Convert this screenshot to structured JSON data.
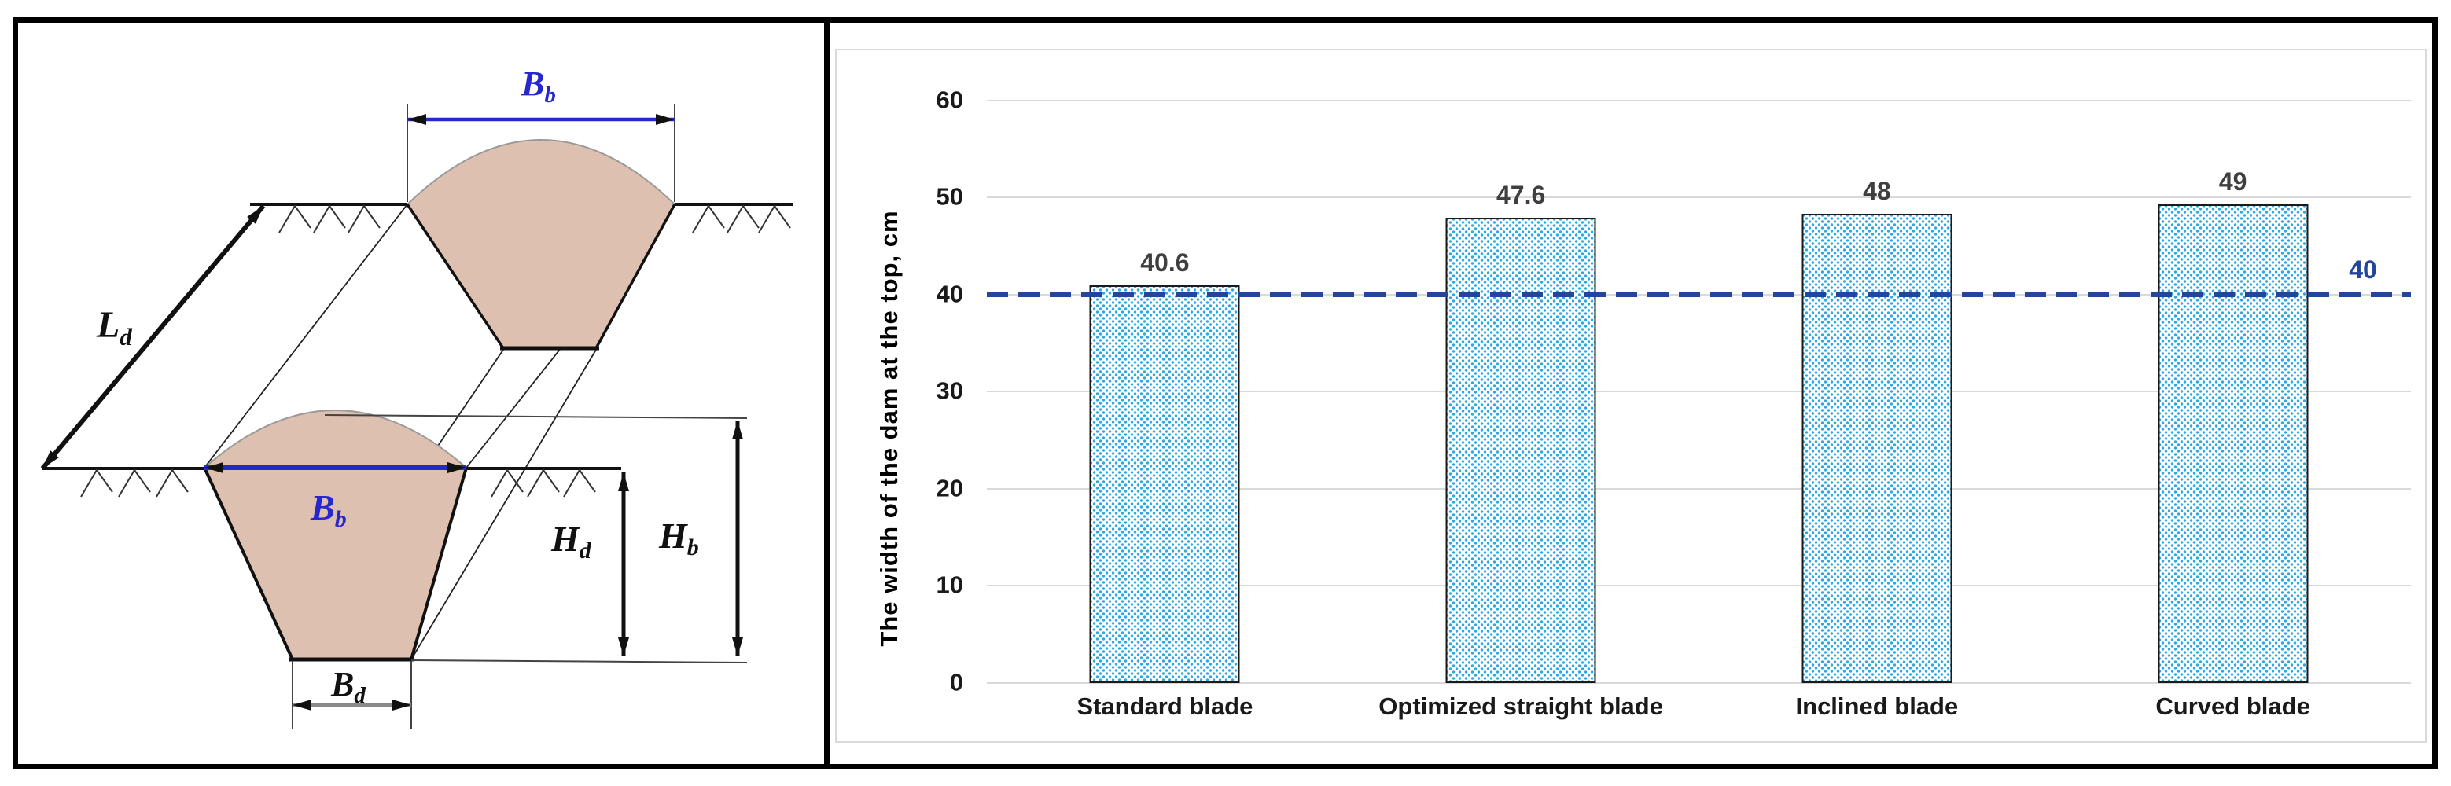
{
  "figure": {
    "left_panel": "dam-cross-section-diagram",
    "right_panel": "dam-top-width-bar-chart"
  },
  "diagram": {
    "labels": {
      "length": {
        "main": "L",
        "sub": "d"
      },
      "width_top_back": {
        "main": "B",
        "sub": "b"
      },
      "width_top_front": {
        "main": "B",
        "sub": "b"
      },
      "height_dam": {
        "main": "H",
        "sub": "d"
      },
      "height_total": {
        "main": "H",
        "sub": "b"
      },
      "width_bottom": {
        "main": "B",
        "sub": "d"
      }
    },
    "colors": {
      "dam_fill": "#dec0b0",
      "dimension_blue": "#2727cf",
      "line_black": "#111111"
    }
  },
  "chart_data": {
    "type": "bar",
    "title": "",
    "categories": [
      "Standard blade",
      "Optimized straight blade",
      "Inclined blade",
      "Curved blade"
    ],
    "values": [
      40.6,
      47.6,
      48,
      49
    ],
    "data_labels": [
      "40.6",
      "47.6",
      "48",
      "49"
    ],
    "xlabel": "",
    "ylabel": "The width of the dam at the top, cm",
    "y_ticks": [
      0,
      10,
      20,
      30,
      40,
      50,
      60
    ],
    "ylim": [
      0,
      65
    ],
    "grid": true,
    "legend": "none",
    "reference_line": {
      "value": 40,
      "label": "40"
    },
    "colors": {
      "bar_dot": "#2ea9e4",
      "bar_border": "#1a1a1a",
      "reference": "#23459c",
      "gridline": "#d9d9d9",
      "data_label": "#3f3f3f",
      "tick_label": "#1a1a1a"
    }
  }
}
